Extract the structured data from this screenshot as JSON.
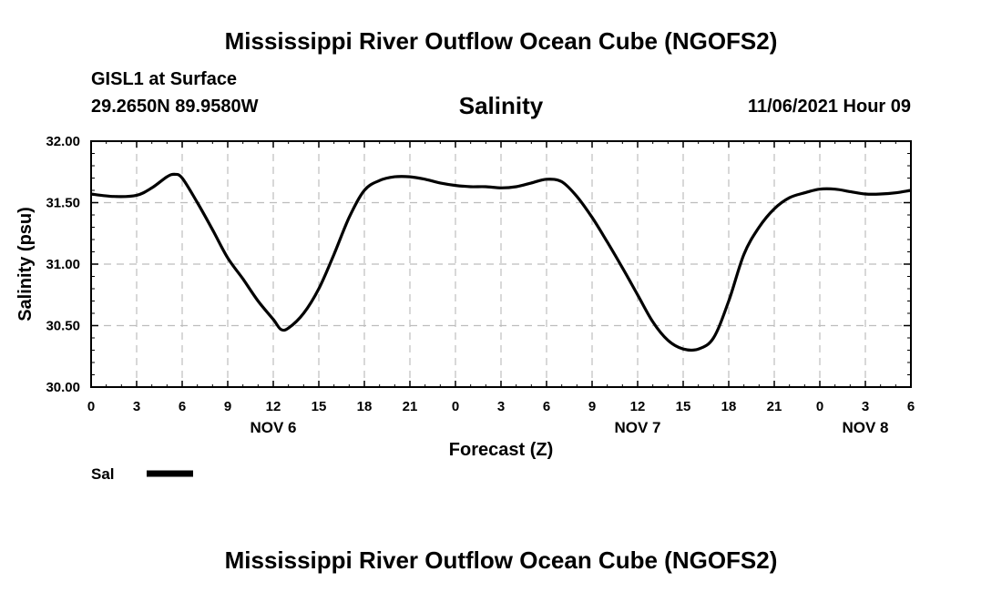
{
  "header": {
    "title": "Mississippi River Outflow Ocean Cube (NGOFS2)",
    "station": "GISL1 at Surface",
    "coords": "29.2650N  89.9580W",
    "datetime": "11/06/2021 Hour 09"
  },
  "footer": {
    "title": "Mississippi River Outflow Ocean Cube (NGOFS2)"
  },
  "chart_data": {
    "type": "line",
    "title": "Salinity",
    "xlabel": "Forecast (Z)",
    "ylabel": "Salinity (psu)",
    "xlim": [
      0,
      54
    ],
    "ylim": [
      30.0,
      32.0
    ],
    "grid": true,
    "x_tick_labels": [
      "0",
      "3",
      "6",
      "9",
      "12",
      "15",
      "18",
      "21",
      "0",
      "3",
      "6",
      "9",
      "12",
      "15",
      "18",
      "21",
      "0",
      "3",
      "6"
    ],
    "y_tick_labels": [
      "30.00",
      "30.50",
      "31.00",
      "31.50",
      "32.00"
    ],
    "date_labels": [
      {
        "label": "NOV 6",
        "x": 12
      },
      {
        "label": "NOV 7",
        "x": 36
      },
      {
        "label": "NOV 8",
        "x": 51
      }
    ],
    "legend": {
      "position": "bottom-left",
      "label": "Sal"
    },
    "series": [
      {
        "name": "Sal",
        "x": [
          0,
          1.5,
          3,
          4,
          5,
          5.5,
          6,
          7,
          8,
          9,
          10,
          11,
          12,
          12.5,
          13,
          14,
          15,
          16,
          17,
          18,
          19,
          20,
          21,
          22,
          23,
          24,
          25,
          26,
          27,
          28,
          29,
          30,
          31,
          32,
          33,
          34,
          35,
          36,
          37,
          38,
          39,
          40,
          41,
          42,
          43,
          44,
          45,
          46,
          47,
          48,
          49,
          50,
          51,
          52,
          53,
          54
        ],
        "values": [
          31.57,
          31.55,
          31.56,
          31.62,
          31.71,
          31.73,
          31.7,
          31.5,
          31.28,
          31.05,
          30.88,
          30.7,
          30.55,
          30.47,
          30.48,
          30.6,
          30.8,
          31.08,
          31.38,
          31.6,
          31.68,
          31.71,
          31.71,
          31.69,
          31.66,
          31.64,
          31.63,
          31.63,
          31.62,
          31.63,
          31.66,
          31.69,
          31.67,
          31.55,
          31.38,
          31.18,
          30.97,
          30.75,
          30.53,
          30.38,
          30.31,
          30.31,
          30.4,
          30.7,
          31.08,
          31.3,
          31.45,
          31.54,
          31.58,
          31.61,
          31.61,
          31.59,
          31.57,
          31.57,
          31.58,
          31.6
        ]
      }
    ]
  }
}
